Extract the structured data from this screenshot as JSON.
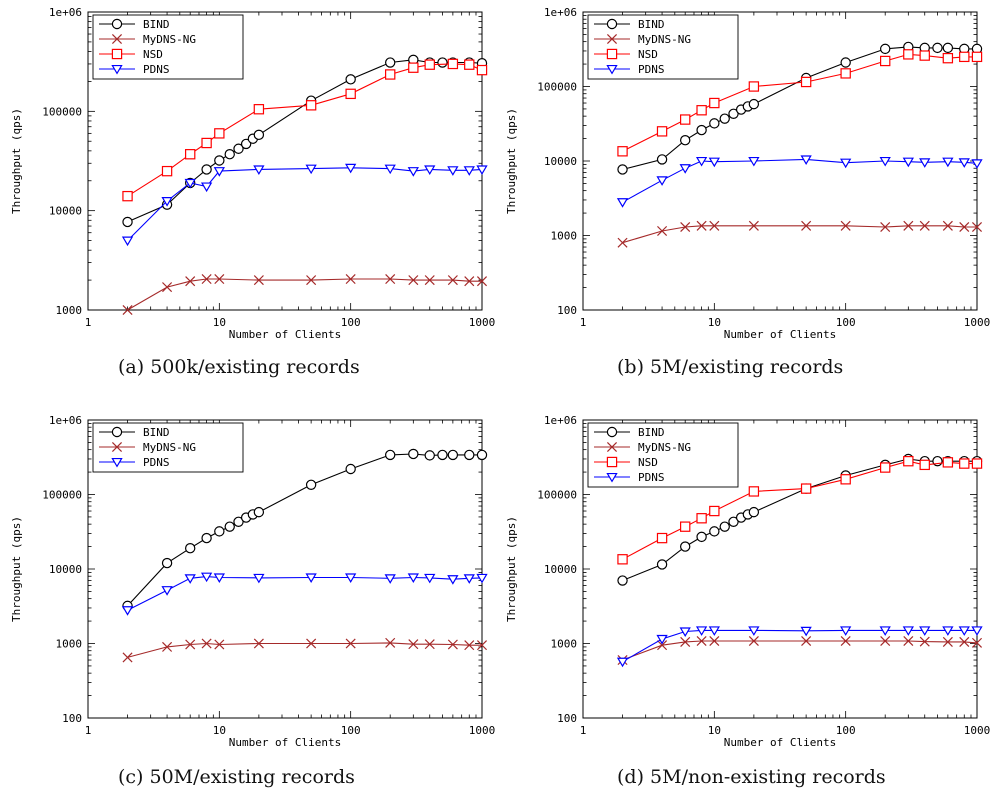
{
  "figure": {
    "panels": [
      {
        "caption": "(a) 500k/existing records"
      },
      {
        "caption": "(b) 5M/existing records"
      },
      {
        "caption": "(c) 50M/existing records"
      },
      {
        "caption": "(d) 5M/non-existing records"
      }
    ]
  },
  "chart_data": [
    {
      "type": "line",
      "xscale": "log",
      "yscale": "log",
      "xlabel": "Number of Clients",
      "ylabel": "Throughput (qps)",
      "xlim": [
        1,
        1000
      ],
      "ylim": [
        1000,
        1000000
      ],
      "xticks": [
        "1",
        "10",
        "100",
        "1000"
      ],
      "yticks": [
        "1000",
        "10000",
        "100000",
        "1e+06"
      ],
      "legend": "top-left",
      "series": [
        {
          "name": "BIND",
          "color": "#000000",
          "marker": "circle",
          "x": [
            2,
            4,
            6,
            8,
            10,
            12,
            14,
            16,
            18,
            20,
            50,
            100,
            200,
            300,
            400,
            500,
            600,
            800,
            1000
          ],
          "y": [
            7700,
            11500,
            19000,
            26000,
            32000,
            37000,
            42000,
            47000,
            53000,
            58000,
            128000,
            210000,
            310000,
            330000,
            310000,
            310000,
            310000,
            310000,
            305000
          ]
        },
        {
          "name": "MyDNS-NG",
          "color": "#a52a2a",
          "marker": "x",
          "x": [
            2,
            4,
            6,
            8,
            10,
            20,
            50,
            100,
            200,
            300,
            400,
            600,
            800,
            1000
          ],
          "y": [
            1000,
            1700,
            1950,
            2050,
            2050,
            2000,
            2000,
            2050,
            2050,
            2000,
            2000,
            2000,
            1950,
            1950
          ]
        },
        {
          "name": "NSD",
          "color": "#ff0000",
          "marker": "square",
          "x": [
            2,
            4,
            6,
            8,
            10,
            20,
            50,
            100,
            200,
            300,
            400,
            600,
            800,
            1000
          ],
          "y": [
            14000,
            25000,
            37000,
            48000,
            60000,
            105000,
            115000,
            150000,
            235000,
            275000,
            295000,
            300000,
            295000,
            260000
          ]
        },
        {
          "name": "PDNS",
          "color": "#0000ff",
          "marker": "triangle",
          "x": [
            2,
            4,
            6,
            8,
            10,
            20,
            50,
            100,
            200,
            300,
            400,
            600,
            800,
            1000
          ],
          "y": [
            5000,
            12500,
            19000,
            17500,
            25000,
            26000,
            26500,
            27000,
            26500,
            25000,
            26000,
            25500,
            25500,
            26000
          ]
        }
      ]
    },
    {
      "type": "line",
      "xscale": "log",
      "yscale": "log",
      "xlabel": "Number of Clients",
      "ylabel": "Throughput (qps)",
      "xlim": [
        1,
        1000
      ],
      "ylim": [
        100,
        1000000
      ],
      "xticks": [
        "1",
        "10",
        "100",
        "1000"
      ],
      "yticks": [
        "100",
        "1000",
        "10000",
        "100000",
        "1e+06"
      ],
      "legend": "top-left",
      "series": [
        {
          "name": "BIND",
          "color": "#000000",
          "marker": "circle",
          "x": [
            2,
            4,
            6,
            8,
            10,
            12,
            14,
            16,
            18,
            20,
            50,
            100,
            200,
            300,
            400,
            500,
            600,
            800,
            1000
          ],
          "y": [
            7700,
            10500,
            19000,
            26000,
            32000,
            37000,
            43000,
            49000,
            54000,
            58000,
            130000,
            210000,
            320000,
            340000,
            330000,
            330000,
            330000,
            320000,
            320000
          ]
        },
        {
          "name": "MyDNS-NG",
          "color": "#a52a2a",
          "marker": "x",
          "x": [
            2,
            4,
            6,
            8,
            10,
            20,
            50,
            100,
            200,
            300,
            400,
            600,
            800,
            1000
          ],
          "y": [
            800,
            1150,
            1300,
            1350,
            1350,
            1350,
            1350,
            1350,
            1300,
            1350,
            1350,
            1350,
            1300,
            1300
          ]
        },
        {
          "name": "NSD",
          "color": "#ff0000",
          "marker": "square",
          "x": [
            2,
            4,
            6,
            8,
            10,
            20,
            50,
            100,
            200,
            300,
            400,
            600,
            800,
            1000
          ],
          "y": [
            13500,
            25000,
            36000,
            48000,
            60000,
            100000,
            115000,
            150000,
            220000,
            270000,
            260000,
            240000,
            250000,
            250000
          ]
        },
        {
          "name": "PDNS",
          "color": "#0000ff",
          "marker": "triangle",
          "x": [
            2,
            4,
            6,
            8,
            10,
            20,
            50,
            100,
            200,
            300,
            400,
            600,
            800,
            1000
          ],
          "y": [
            2800,
            5500,
            8000,
            10000,
            9800,
            10000,
            10500,
            9500,
            10000,
            9800,
            9600,
            9800,
            9600,
            9300
          ]
        }
      ]
    },
    {
      "type": "line",
      "xscale": "log",
      "yscale": "log",
      "xlabel": "Number of Clients",
      "ylabel": "Throughput (qps)",
      "xlim": [
        1,
        1000
      ],
      "ylim": [
        100,
        1000000
      ],
      "xticks": [
        "1",
        "10",
        "100",
        "1000"
      ],
      "yticks": [
        "100",
        "1000",
        "10000",
        "100000",
        "1e+06"
      ],
      "legend": "top-left",
      "series": [
        {
          "name": "BIND",
          "color": "#000000",
          "marker": "circle",
          "x": [
            2,
            4,
            6,
            8,
            10,
            12,
            14,
            16,
            18,
            20,
            50,
            100,
            200,
            300,
            400,
            500,
            600,
            800,
            1000
          ],
          "y": [
            3200,
            12000,
            19000,
            26000,
            32000,
            37000,
            43000,
            49000,
            54000,
            58000,
            135000,
            220000,
            340000,
            350000,
            335000,
            340000,
            340000,
            340000,
            340000
          ]
        },
        {
          "name": "MyDNS-NG",
          "color": "#a52a2a",
          "marker": "x",
          "x": [
            2,
            4,
            6,
            8,
            10,
            20,
            50,
            100,
            200,
            300,
            400,
            600,
            800,
            1000
          ],
          "y": [
            650,
            900,
            970,
            1000,
            970,
            1000,
            1000,
            1000,
            1020,
            980,
            980,
            970,
            950,
            950
          ]
        },
        {
          "name": "PDNS",
          "color": "#0000ff",
          "marker": "triangle",
          "x": [
            2,
            4,
            6,
            8,
            10,
            20,
            50,
            100,
            200,
            300,
            400,
            600,
            800,
            1000
          ],
          "y": [
            2800,
            5200,
            7500,
            7900,
            7700,
            7600,
            7700,
            7700,
            7500,
            7700,
            7600,
            7300,
            7500,
            7600
          ]
        }
      ]
    },
    {
      "type": "line",
      "xscale": "log",
      "yscale": "log",
      "xlabel": "Number of Clients",
      "ylabel": "Throughput (qps)",
      "xlim": [
        1,
        1000
      ],
      "ylim": [
        100,
        1000000
      ],
      "xticks": [
        "1",
        "10",
        "100",
        "1000"
      ],
      "yticks": [
        "100",
        "1000",
        "10000",
        "100000",
        "1e+06"
      ],
      "legend": "top-left",
      "series": [
        {
          "name": "BIND",
          "color": "#000000",
          "marker": "circle",
          "x": [
            2,
            4,
            6,
            8,
            10,
            12,
            14,
            16,
            18,
            20,
            50,
            100,
            200,
            300,
            400,
            500,
            600,
            800,
            1000
          ],
          "y": [
            7000,
            11500,
            20000,
            27000,
            32000,
            37000,
            43000,
            49000,
            54000,
            58000,
            120000,
            180000,
            250000,
            300000,
            280000,
            280000,
            280000,
            280000,
            280000
          ]
        },
        {
          "name": "MyDNS-NG",
          "color": "#a52a2a",
          "marker": "x",
          "x": [
            2,
            4,
            6,
            8,
            10,
            20,
            50,
            100,
            200,
            300,
            400,
            600,
            800,
            1000
          ],
          "y": [
            600,
            950,
            1050,
            1080,
            1080,
            1080,
            1080,
            1080,
            1080,
            1080,
            1060,
            1050,
            1050,
            1020
          ]
        },
        {
          "name": "NSD",
          "color": "#ff0000",
          "marker": "square",
          "x": [
            2,
            4,
            6,
            8,
            10,
            20,
            50,
            100,
            200,
            300,
            400,
            600,
            800,
            1000
          ],
          "y": [
            13500,
            26000,
            37000,
            48000,
            60000,
            110000,
            120000,
            160000,
            230000,
            280000,
            250000,
            270000,
            260000,
            260000
          ]
        },
        {
          "name": "PDNS",
          "color": "#0000ff",
          "marker": "triangle",
          "x": [
            2,
            4,
            6,
            8,
            10,
            20,
            50,
            100,
            200,
            300,
            400,
            600,
            800,
            1000
          ],
          "y": [
            570,
            1150,
            1450,
            1500,
            1500,
            1500,
            1480,
            1500,
            1500,
            1500,
            1500,
            1500,
            1500,
            1500
          ]
        }
      ]
    }
  ]
}
